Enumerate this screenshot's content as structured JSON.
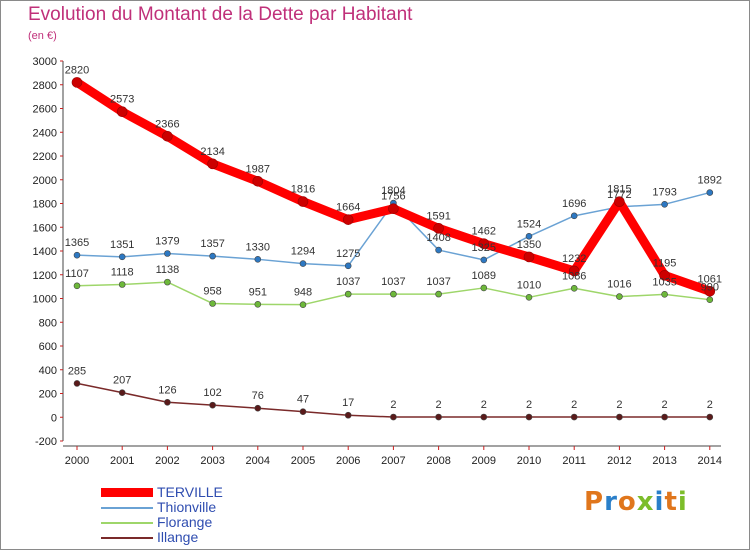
{
  "header": {
    "title": "Evolution du Montant de la Dette par Habitant",
    "subtitle": "(en €)"
  },
  "brand": {
    "text": "Proxiti",
    "colors": [
      "#e0761c",
      "#2a7fc9",
      "#e0761c",
      "#7cbd2a",
      "#2a7fc9",
      "#e0761c",
      "#7cbd2a"
    ]
  },
  "chart_data": {
    "type": "line",
    "title": "Evolution du Montant de la Dette par Habitant",
    "subtitle": "(en €)",
    "x": [
      "2000",
      "2001",
      "2002",
      "2003",
      "2004",
      "2005",
      "2006",
      "2007",
      "2008",
      "2009",
      "2010",
      "2011",
      "2012",
      "2013",
      "2014"
    ],
    "ylim": [
      -200,
      3000
    ],
    "yticks": [
      -200,
      0,
      200,
      400,
      600,
      800,
      1000,
      1200,
      1400,
      1600,
      1800,
      2000,
      2200,
      2400,
      2600,
      2800,
      3000
    ],
    "grid": false,
    "legend_position": "bottom-left",
    "series": [
      {
        "name": "TERVILLE",
        "color": "#ff0000",
        "marker": "#cc0000",
        "width": 9,
        "values": [
          2820,
          2573,
          2366,
          2134,
          1987,
          1816,
          1664,
          1756,
          1591,
          1462,
          1350,
          1232,
          1815,
          1195,
          1061
        ],
        "labels": [
          "2820",
          "2573",
          "2366",
          "2134",
          "1987",
          "1816",
          "1664",
          "1756",
          "1591",
          "1462",
          "1350",
          "1232",
          "1815",
          "1195",
          "1061"
        ]
      },
      {
        "name": "Thionville",
        "color": "#6aa2d4",
        "marker": "#2d78c2",
        "width": 1.5,
        "values": [
          1365,
          1351,
          1379,
          1357,
          1330,
          1294,
          1275,
          1804,
          1408,
          1325,
          1524,
          1696,
          1772,
          1793,
          1892
        ],
        "labels": [
          "1365",
          "1351",
          "1379",
          "1357",
          "1330",
          "1294",
          "1275",
          "1804",
          "1408",
          "1325",
          "1524",
          "1696",
          "1772",
          "1793",
          "1892"
        ]
      },
      {
        "name": "Florange",
        "color": "#9ed66a",
        "marker": "#6db83a",
        "width": 1.5,
        "values": [
          1107,
          1118,
          1138,
          958,
          951,
          948,
          1037,
          1037,
          1037,
          1089,
          1010,
          1086,
          1016,
          1035,
          990
        ],
        "labels": [
          "1107",
          "1118",
          "1138",
          "958",
          "951",
          "948",
          "1037",
          "1037",
          "1037",
          "1089",
          "1010",
          "1086",
          "1016",
          "1035",
          "990"
        ]
      },
      {
        "name": "Illange",
        "color": "#7a2a2a",
        "marker": "#5a1a1a",
        "width": 1.5,
        "values": [
          285,
          207,
          126,
          102,
          76,
          47,
          17,
          2,
          2,
          2,
          2,
          2,
          2,
          2,
          2
        ],
        "labels": [
          "285",
          "207",
          "126",
          "102",
          "76",
          "47",
          "17",
          "2",
          "2",
          "2",
          "2",
          "2",
          "2",
          "2",
          "2"
        ]
      }
    ]
  }
}
